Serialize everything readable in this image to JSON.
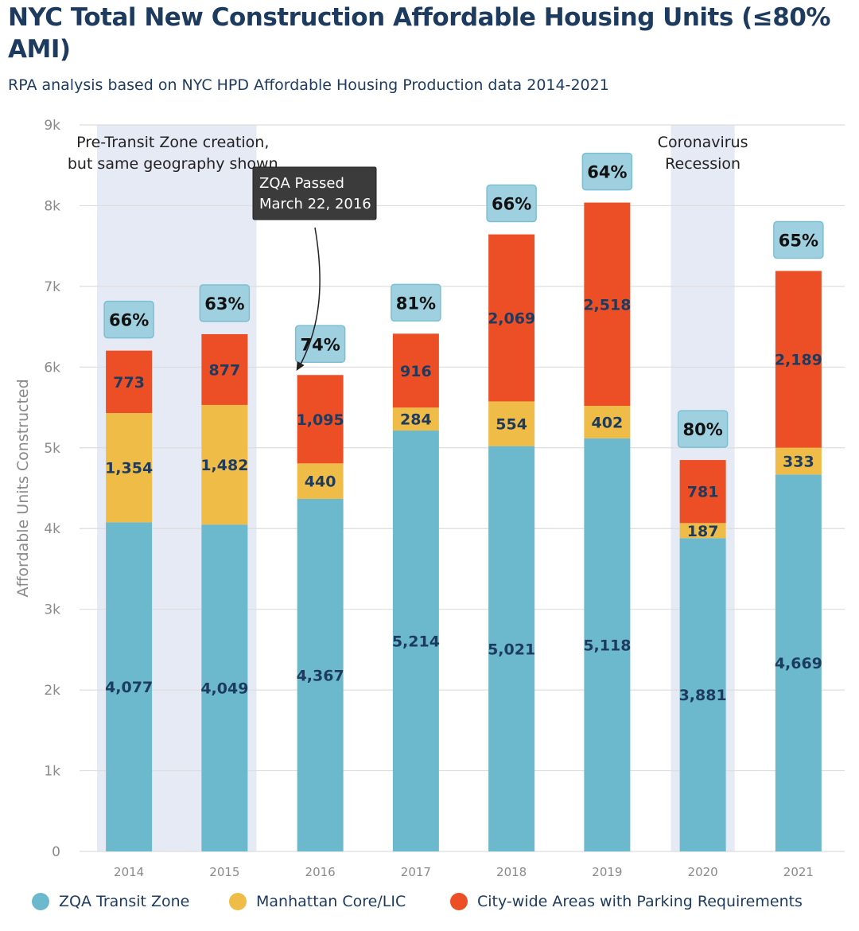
{
  "chart_data": {
    "type": "bar",
    "stacked": true,
    "title": "NYC Total New Construction Affordable Housing Units (≤80% AMI)",
    "subtitle": "RPA analysis based on NYC HPD Affordable Housing Production data 2014-2021",
    "ylabel": "Affordable Units Constructed",
    "xlabel": "",
    "ylim": [
      0,
      9000
    ],
    "y_ticks": [
      0,
      1000,
      2000,
      3000,
      4000,
      5000,
      6000,
      7000,
      8000,
      9000
    ],
    "y_tick_labels": [
      "0",
      "1k",
      "2k",
      "3k",
      "4k",
      "5k",
      "6k",
      "7k",
      "8k",
      "9k"
    ],
    "grid": true,
    "legend_position": "bottom",
    "categories": [
      "2014",
      "2015",
      "2016",
      "2017",
      "2018",
      "2019",
      "2020",
      "2021"
    ],
    "series": [
      {
        "name": "ZQA Transit Zone",
        "color": "#6cb9ce",
        "values": [
          4077,
          4049,
          4367,
          5214,
          5021,
          5118,
          3881,
          4669
        ],
        "labels": [
          "4,077",
          "4,049",
          "4,367",
          "5,214",
          "5,021",
          "5,118",
          "3,881",
          "4,669"
        ]
      },
      {
        "name": "Manhattan Core/LIC",
        "color": "#f0bc48",
        "values": [
          1354,
          1482,
          440,
          284,
          554,
          402,
          187,
          333
        ],
        "labels": [
          "1,354",
          "1,482",
          "440",
          "284",
          "554",
          "402",
          "187",
          "333"
        ]
      },
      {
        "name": "City-wide Areas with Parking Requirements",
        "color": "#ec4e25",
        "values": [
          773,
          877,
          1095,
          916,
          2069,
          2518,
          781,
          2189
        ],
        "labels": [
          "773",
          "877",
          "1,095",
          "916",
          "2,069",
          "2,518",
          "781",
          "2,189"
        ]
      }
    ],
    "percent_labels": [
      "66%",
      "63%",
      "74%",
      "81%",
      "66%",
      "64%",
      "80%",
      "65%"
    ],
    "shaded_regions": [
      {
        "from": "2014",
        "to": "2015",
        "label_lines": [
          "Pre-Transit Zone creation,",
          "but same geography shown"
        ]
      },
      {
        "from": "2020",
        "to": "2020",
        "label_lines": [
          "Coronavirus",
          "Recession"
        ]
      }
    ],
    "annotation": {
      "category": "2016",
      "label_lines": [
        "ZQA Passed",
        "March 22, 2016"
      ]
    }
  }
}
